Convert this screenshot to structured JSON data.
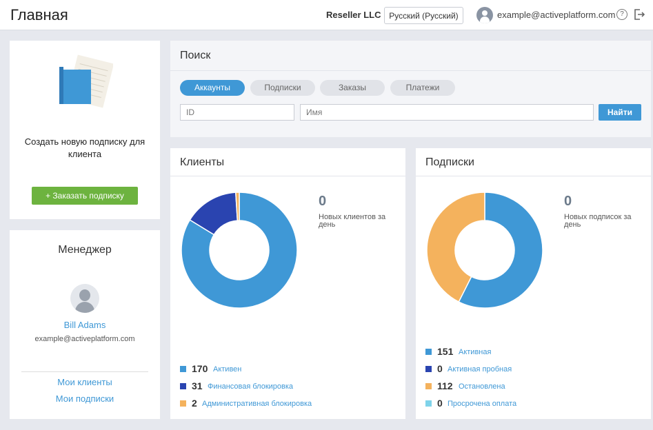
{
  "header": {
    "title": "Главная",
    "company": "Reseller LLC",
    "language": "Русский (Русский)",
    "email": "example@activeplatform.com",
    "help": "?"
  },
  "promo": {
    "text": "Создать новую подписку для клиента",
    "button": "+ Заказать подписку"
  },
  "manager": {
    "title": "Менеджер",
    "name": "Bill Adams",
    "email": "example@activeplatform.com",
    "links": [
      "Мои клиенты",
      "Мои подписки"
    ]
  },
  "search": {
    "title": "Поиск",
    "tabs": [
      "Аккаунты",
      "Подписки",
      "Заказы",
      "Платежи"
    ],
    "id_placeholder": "ID",
    "name_placeholder": "Имя",
    "button": "Найти"
  },
  "colors": {
    "blue": "#3f98d6",
    "dark_blue": "#2a44b0",
    "orange": "#f4b25d",
    "cyan": "#7fd3ea",
    "green": "#6db33f"
  },
  "clients": {
    "title": "Клиенты",
    "new_count": "0",
    "new_label": "Новых клиентов за день",
    "legend": [
      {
        "value": 170,
        "label": "Активен",
        "color": "#3f98d6"
      },
      {
        "value": 31,
        "label": "Финансовая блокировка",
        "color": "#2a44b0"
      },
      {
        "value": 2,
        "label": "Административная блокировка",
        "color": "#f4b25d"
      }
    ]
  },
  "subscriptions": {
    "title": "Подписки",
    "new_count": "0",
    "new_label": "Новых подписок за день",
    "legend": [
      {
        "value": 151,
        "label": "Активная",
        "color": "#3f98d6"
      },
      {
        "value": 0,
        "label": "Активная пробная",
        "color": "#2a44b0"
      },
      {
        "value": 112,
        "label": "Остановлена",
        "color": "#f4b25d"
      },
      {
        "value": 0,
        "label": "Просрочена оплата",
        "color": "#7fd3ea"
      }
    ]
  }
}
